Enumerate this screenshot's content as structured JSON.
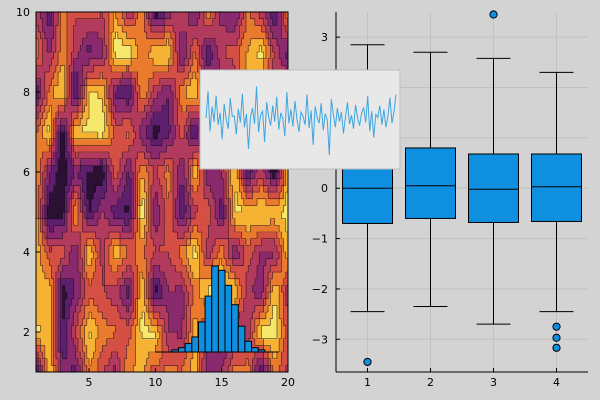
{
  "chart_data": [
    {
      "type": "heatmap",
      "subtype": "filled-contour",
      "title": "",
      "xlabel": "",
      "ylabel": "",
      "xlim": [
        1,
        20
      ],
      "ylim": [
        1,
        10
      ],
      "x_ticks": [
        5,
        10,
        15,
        20
      ],
      "y_ticks": [
        2,
        4,
        6,
        8,
        10
      ],
      "grid": false,
      "colormap": [
        "#2a1033",
        "#5d1f6e",
        "#8a2a6e",
        "#b23a5c",
        "#d44f44",
        "#ea7a2d",
        "#f6b233",
        "#f5e86a"
      ]
    },
    {
      "type": "line",
      "inset": true,
      "description_free": true,
      "series": [
        {
          "values": [
            0.05,
            0.72,
            -0.28,
            0.34,
            -0.05,
            0.61,
            -0.12,
            0.18,
            -0.48,
            0.4,
            0.02,
            -0.22,
            0.55,
            0.09,
            0.1,
            -0.36,
            0.28,
            -0.06,
            0.66,
            -0.18,
            0.15,
            -0.72,
            0.06,
            0.3,
            -0.1,
            0.84,
            -0.3,
            0.12,
            0.22,
            -0.55,
            0.45,
            0.08,
            -0.14,
            0.36,
            -0.04,
            0.58,
            -0.24,
            0.18,
            0.04,
            -0.4,
            0.7,
            -0.08,
            0.26,
            -0.16,
            0.48,
            0.02,
            -0.3,
            0.2,
            0.1,
            -0.12,
            0.64,
            -0.2,
            0.24,
            -0.62,
            0.34,
            0.06,
            -0.08,
            0.42,
            -0.26,
            0.16,
            0.0,
            -0.88,
            0.52,
            0.14,
            -0.18,
            0.3,
            -0.04,
            0.2,
            -0.34,
            0.08,
            0.44,
            -0.1,
            0.12,
            -0.22,
            0.38,
            0.05,
            -0.14,
            0.18,
            0.3,
            -0.06,
            0.6,
            -0.28,
            0.22,
            -0.44,
            0.14,
            0.06,
            0.36,
            -0.12,
            0.26,
            -0.18,
            0.1,
            0.56,
            -0.08,
            0.2,
            0.64
          ],
          "color": "#3ea6e0"
        }
      ]
    },
    {
      "type": "bar",
      "subtype": "histogram",
      "inset": true,
      "bins": [
        {
          "x": 11.5,
          "count": 1
        },
        {
          "x": 12.0,
          "count": 2
        },
        {
          "x": 12.5,
          "count": 4
        },
        {
          "x": 13.0,
          "count": 7
        },
        {
          "x": 13.5,
          "count": 14
        },
        {
          "x": 14.0,
          "count": 26
        },
        {
          "x": 14.5,
          "count": 40
        },
        {
          "x": 15.0,
          "count": 38
        },
        {
          "x": 15.5,
          "count": 31
        },
        {
          "x": 16.0,
          "count": 22
        },
        {
          "x": 16.5,
          "count": 12
        },
        {
          "x": 17.0,
          "count": 5
        },
        {
          "x": 17.5,
          "count": 2
        },
        {
          "x": 18.0,
          "count": 1
        }
      ],
      "bin_width": 0.5,
      "color": "#0f8fe0"
    },
    {
      "type": "box",
      "title": "",
      "xlabel": "",
      "ylabel": "",
      "categories": [
        "1",
        "2",
        "3",
        "4"
      ],
      "ylim": [
        -3.65,
        3.5
      ],
      "y_ticks": [
        -3,
        -2,
        -1,
        0,
        1,
        2,
        3
      ],
      "grid": true,
      "boxes": [
        {
          "whisker_low": -2.45,
          "q1": -0.7,
          "median": 0.0,
          "q3": 0.75,
          "whisker_high": 2.85,
          "outliers": [
            -3.45
          ]
        },
        {
          "whisker_low": -2.35,
          "q1": -0.6,
          "median": 0.05,
          "q3": 0.8,
          "whisker_high": 2.7,
          "outliers": []
        },
        {
          "whisker_low": -2.7,
          "q1": -0.68,
          "median": -0.02,
          "q3": 0.68,
          "whisker_high": 2.58,
          "outliers": [
            3.45
          ]
        },
        {
          "whisker_low": -2.45,
          "q1": -0.66,
          "median": 0.03,
          "q3": 0.68,
          "whisker_high": 2.3,
          "outliers": [
            -2.75,
            -2.97,
            -3.17
          ]
        }
      ],
      "color": "#0f8fe0"
    }
  ]
}
